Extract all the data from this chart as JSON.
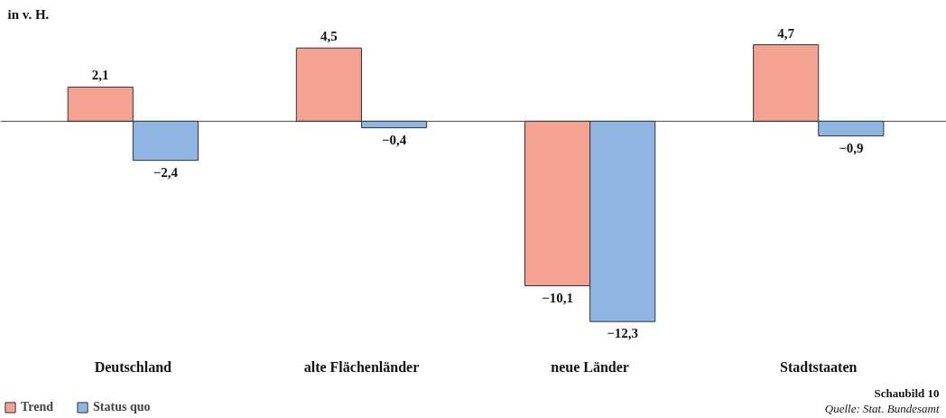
{
  "chart_data": {
    "type": "bar",
    "ylabel": "in v. H.",
    "categories": [
      "Deutschland",
      "alte Flächenländer",
      "neue Länder",
      "Stadtstaaten"
    ],
    "series": [
      {
        "name": "Trend",
        "color": "#f4a392",
        "values": [
          2.1,
          4.5,
          -10.1,
          4.7
        ],
        "value_labels": [
          "2,1",
          "4,5",
          "−10,1",
          "4,7"
        ]
      },
      {
        "name": "Status quo",
        "color": "#8fb5e2",
        "values": [
          -2.4,
          -0.4,
          -12.3,
          -0.9
        ],
        "value_labels": [
          "−2,4",
          "−0,4",
          "−12,3",
          "−0,9"
        ]
      }
    ],
    "ref_lines": [
      {
        "axis": "y",
        "value": 0,
        "label": null
      }
    ],
    "legend": "bottom left",
    "annotations": [
      "Schaubild 10",
      "Quelle: Stat. Bundesamt"
    ]
  }
}
